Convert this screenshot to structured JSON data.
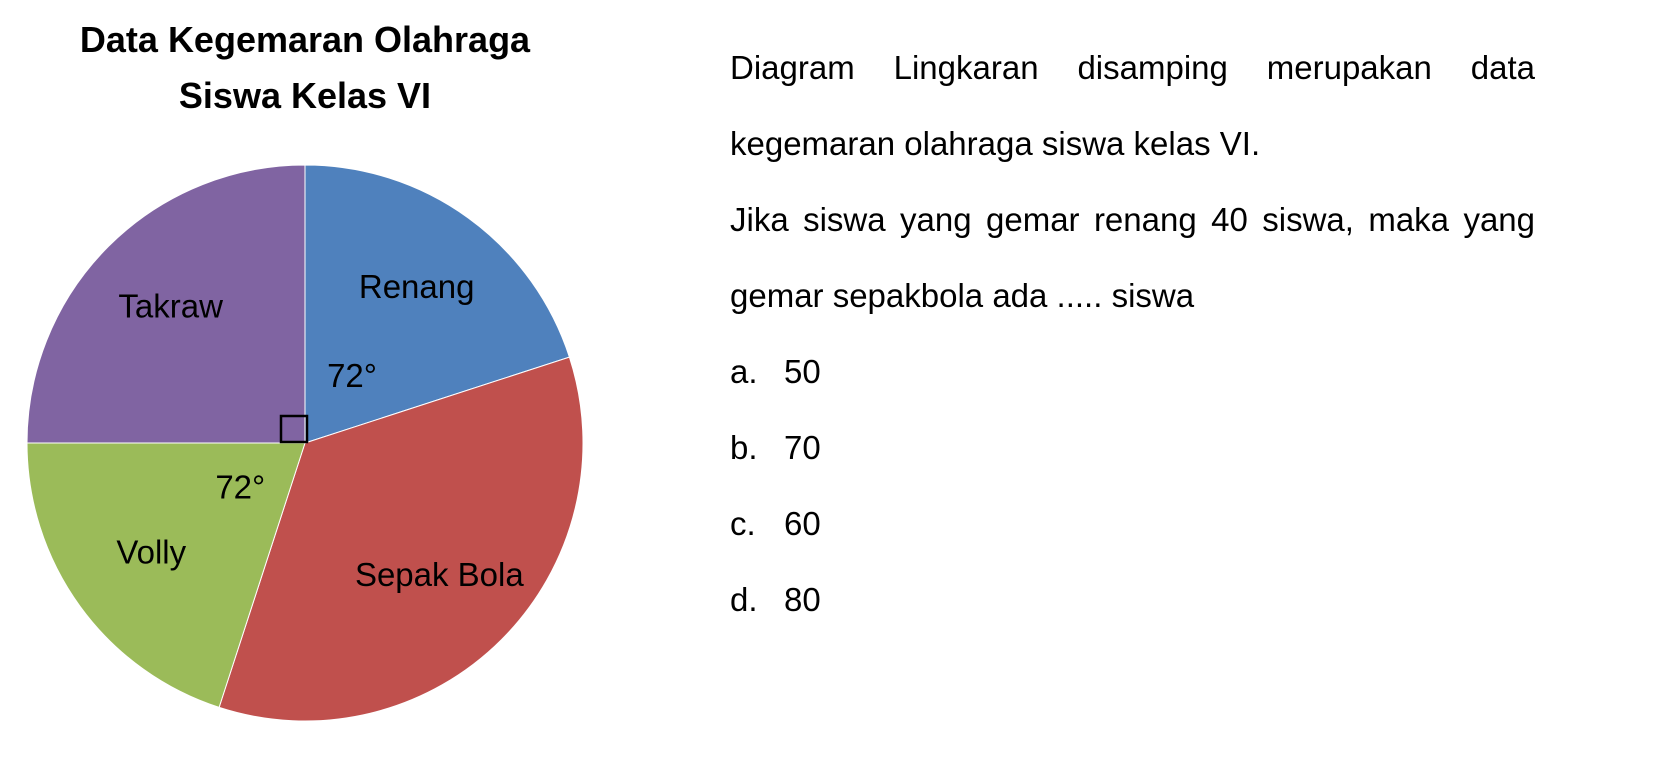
{
  "chart_data": {
    "type": "pie",
    "title": "Data Kegemaran Olahraga Siswa Kelas VI",
    "categories": [
      "Renang",
      "Sepak Bola",
      "Volly",
      "Takraw"
    ],
    "values": [
      72,
      126,
      72,
      90
    ],
    "value_labels": [
      "72°",
      null,
      "72°",
      null
    ],
    "colors": [
      "#4f81bd",
      "#c0504d",
      "#9bbb59",
      "#8064a2"
    ]
  },
  "question": {
    "paragraphs": [
      "Diagram Lingkaran disamping merupakan data kegemaran olahraga siswa kelas VI.",
      "Jika siswa yang gemar renang 40 siswa, maka yang gemar sepakbola ada ..... siswa"
    ],
    "options": [
      {
        "letter": "a.",
        "value": 50
      },
      {
        "letter": "b.",
        "value": 70
      },
      {
        "letter": "c.",
        "value": 60
      },
      {
        "letter": "d.",
        "value": 80
      }
    ]
  }
}
